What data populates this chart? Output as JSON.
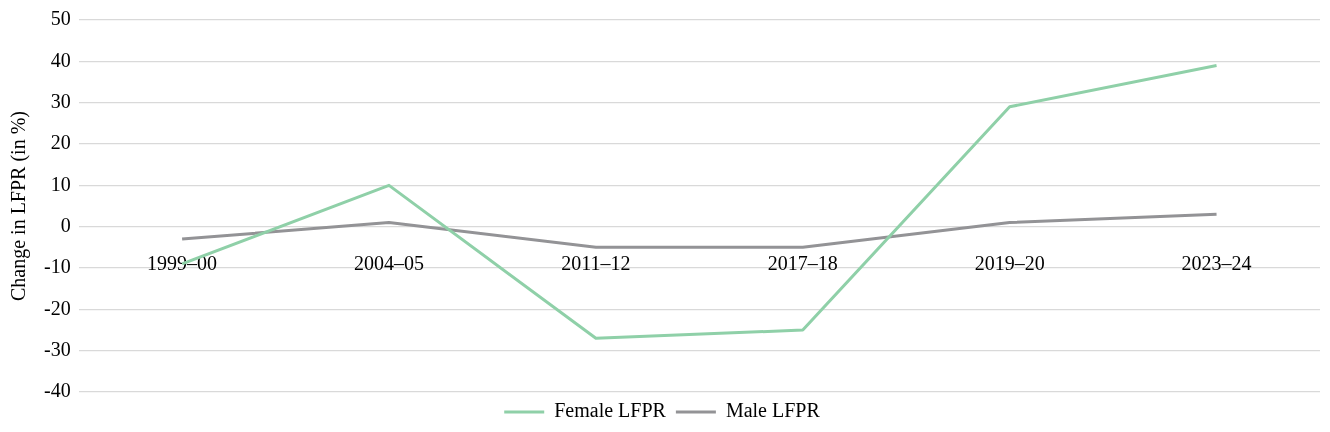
{
  "chart_data": {
    "type": "line",
    "ylabel": "Change in LFPR (in %)",
    "categories": [
      "1999–00",
      "2004–05",
      "2011–12",
      "2017–18",
      "2019–20",
      "2023–24"
    ],
    "series": [
      {
        "name": "Female LFPR",
        "color": "#8fd0a8",
        "values": [
          -9,
          10,
          -27,
          -25,
          29,
          39
        ]
      },
      {
        "name": "Male LFPR",
        "color": "#939396",
        "values": [
          -3,
          1,
          -5,
          -5,
          1,
          3
        ]
      }
    ],
    "ylim": [
      -40,
      50
    ],
    "yticks": [
      -40,
      -30,
      -20,
      -10,
      0,
      10,
      20,
      30,
      40,
      50
    ],
    "grid": "y",
    "legend": "bottom",
    "marker": "none",
    "line_style": "solid"
  }
}
